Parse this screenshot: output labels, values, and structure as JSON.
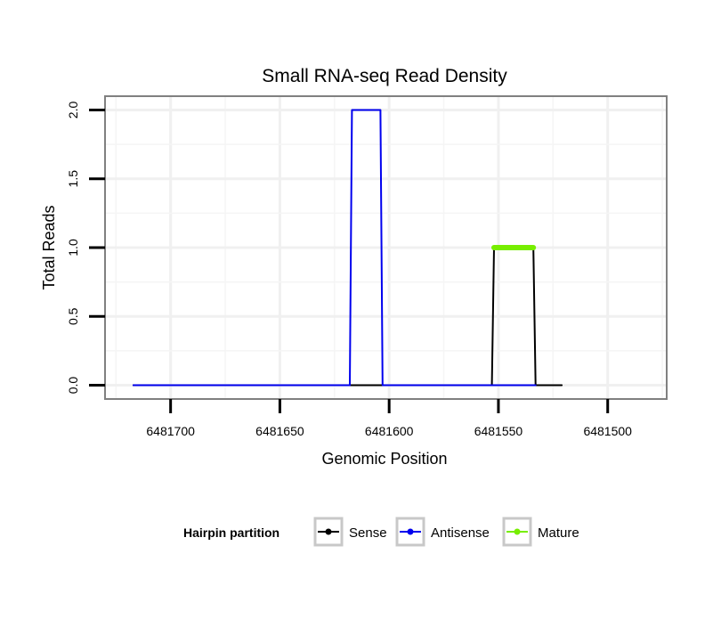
{
  "chart_data": {
    "type": "line",
    "title": "Small RNA-seq Read Density",
    "xlabel": "Genomic Position",
    "ylabel": "Total Reads",
    "x_reversed": true,
    "xlim": [
      6481730,
      6481473
    ],
    "ylim": [
      -0.1,
      2.1
    ],
    "x_ticks": [
      6481700,
      6481650,
      6481600,
      6481550,
      6481500
    ],
    "x_tick_labels": [
      "6481700",
      "6481650",
      "6481600",
      "6481550",
      "6481500"
    ],
    "y_ticks": [
      0,
      0.5,
      1,
      1.5,
      2
    ],
    "y_tick_labels": [
      "0.0",
      "0.5",
      "1.0",
      "1.5",
      "2.0"
    ],
    "grid": true,
    "legend": {
      "title": "Hairpin partition",
      "position": "bottom",
      "entries": [
        {
          "label": "Sense",
          "color": "#000000"
        },
        {
          "label": "Antisense",
          "color": "#0000ee"
        },
        {
          "label": "Mature",
          "color": "#77ee00"
        }
      ]
    },
    "series": [
      {
        "name": "Sense",
        "color": "#000000",
        "x": [
          6481717,
          6481553,
          6481552,
          6481534,
          6481533,
          6481521
        ],
        "y": [
          0,
          0,
          1,
          1,
          0,
          0
        ]
      },
      {
        "name": "Antisense",
        "color": "#0000ee",
        "x": [
          6481717,
          6481618,
          6481617,
          6481604,
          6481603,
          6481533
        ],
        "y": [
          0,
          0,
          2,
          2,
          0,
          0
        ]
      },
      {
        "name": "Mature",
        "color": "#77ee00",
        "x": [
          6481552,
          6481534
        ],
        "y": [
          1,
          1
        ]
      }
    ]
  }
}
